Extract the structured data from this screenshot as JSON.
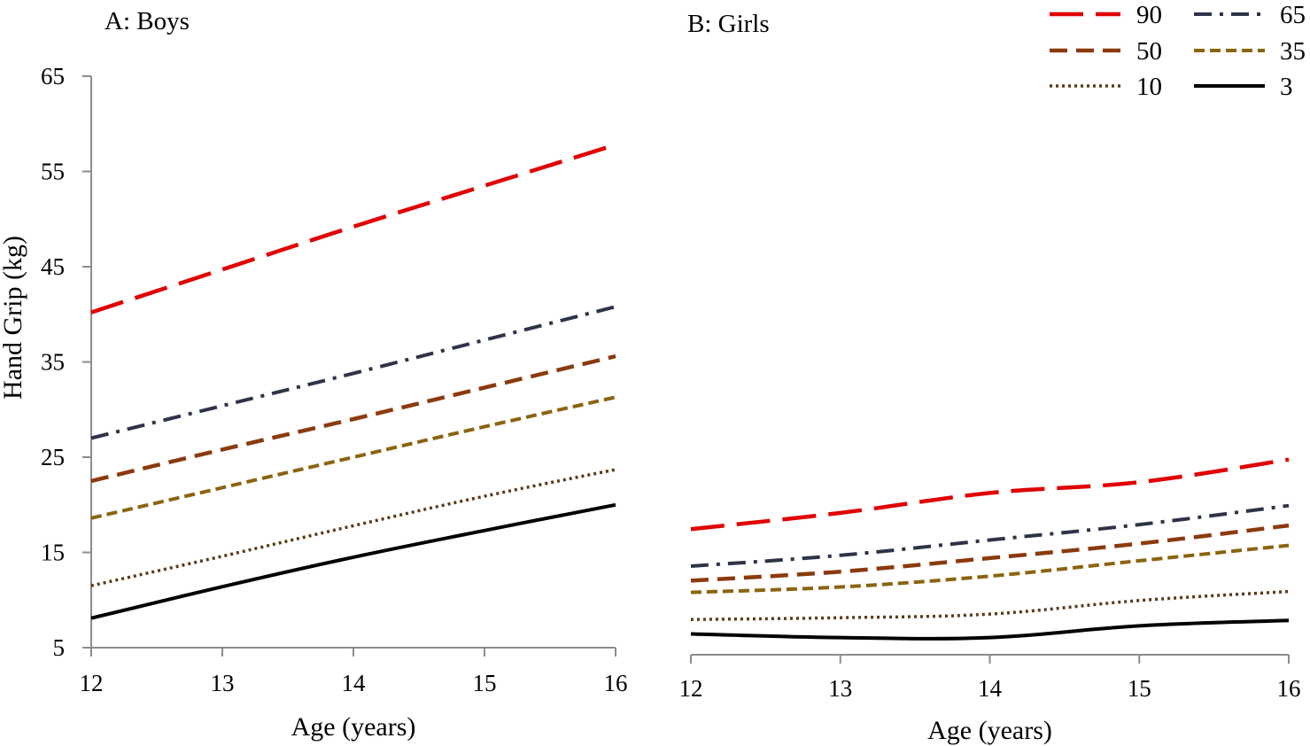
{
  "chart_data": [
    {
      "id": "boys",
      "type": "line",
      "title": "A: Boys",
      "xlabel": "Age (years)",
      "ylabel": "Hand Grip (kg)",
      "x": [
        12,
        13,
        14,
        15,
        16
      ],
      "xlim": [
        12,
        16
      ],
      "ylim": [
        5,
        65
      ],
      "yticks": [
        5,
        15,
        25,
        35,
        45,
        55,
        65
      ],
      "xticks": [
        12,
        13,
        14,
        15,
        16
      ],
      "series": [
        {
          "name": "90",
          "values": [
            40.2,
            44.7,
            49.2,
            53.5,
            57.8
          ]
        },
        {
          "name": "65",
          "values": [
            27.0,
            30.4,
            33.8,
            37.3,
            40.8
          ]
        },
        {
          "name": "50",
          "values": [
            22.5,
            25.8,
            29.0,
            32.3,
            35.6
          ]
        },
        {
          "name": "35",
          "values": [
            18.6,
            21.8,
            25.0,
            28.2,
            31.3
          ]
        },
        {
          "name": "10",
          "values": [
            11.5,
            14.6,
            17.8,
            20.9,
            23.7
          ]
        },
        {
          "name": "3",
          "values": [
            8.1,
            11.4,
            14.5,
            17.3,
            20.0
          ]
        }
      ]
    },
    {
      "id": "girls",
      "type": "line",
      "title": "B: Girls",
      "xlabel": "Age (years)",
      "ylabel": "",
      "x": [
        12,
        13,
        14,
        15,
        16
      ],
      "xlim": [
        12,
        16
      ],
      "ylim": [
        5,
        65
      ],
      "xticks": [
        12,
        13,
        14,
        15,
        16
      ],
      "series": [
        {
          "name": "90",
          "values": [
            18.9,
            20.7,
            22.9,
            24.1,
            26.6
          ]
        },
        {
          "name": "65",
          "values": [
            14.8,
            16.0,
            17.7,
            19.4,
            21.5
          ]
        },
        {
          "name": "50",
          "values": [
            13.2,
            14.2,
            15.7,
            17.3,
            19.3
          ]
        },
        {
          "name": "35",
          "values": [
            11.9,
            12.5,
            13.7,
            15.4,
            17.1
          ]
        },
        {
          "name": "10",
          "values": [
            8.9,
            9.1,
            9.5,
            11.0,
            12.0
          ]
        },
        {
          "name": "3",
          "values": [
            7.3,
            6.9,
            6.9,
            8.2,
            8.8
          ]
        }
      ]
    }
  ],
  "legend": [
    {
      "name": "90",
      "color": "#e00000",
      "dash": "long-dash"
    },
    {
      "name": "65",
      "color": "#2e3447",
      "dash": "dash-dot"
    },
    {
      "name": "50",
      "color": "#8b3a0e",
      "dash": "dash"
    },
    {
      "name": "35",
      "color": "#8a6410",
      "dash": "short-dash"
    },
    {
      "name": "10",
      "color": "#5a3a18",
      "dash": "dot"
    },
    {
      "name": "3",
      "color": "#000000",
      "dash": "solid"
    }
  ]
}
